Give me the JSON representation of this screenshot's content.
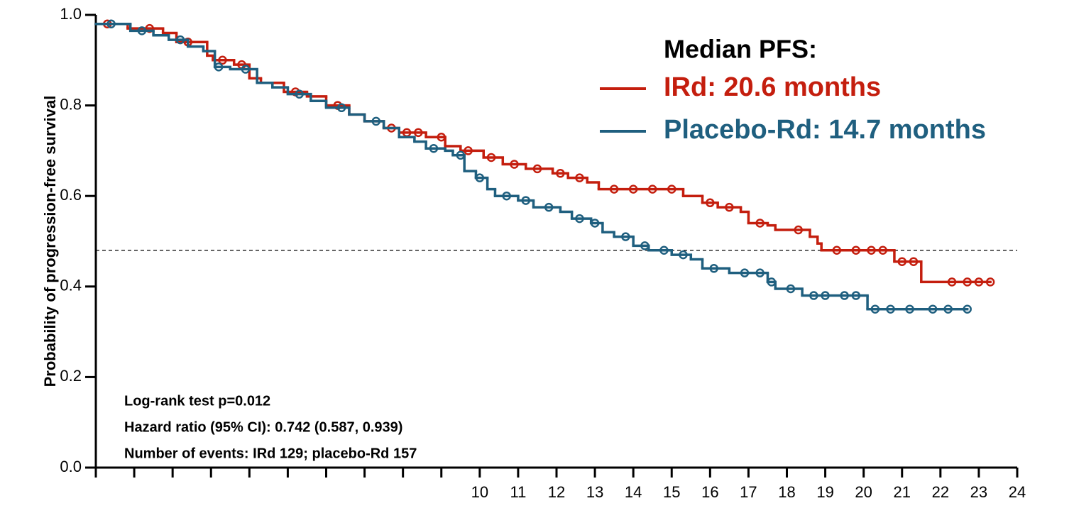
{
  "chart_data": {
    "type": "line",
    "step": "post",
    "y_label": "Probability of progression-free survival",
    "legend_title": "Median PFS:",
    "annotations": [
      "Log-rank test p=0.012",
      "Hazard ratio (95% CI): 0.742 (0.587, 0.939)",
      "Number of events: IRd 129; placebo-Rd 157"
    ],
    "reference_line": 0.48,
    "xlim": [
      0,
      24
    ],
    "ylim": [
      0,
      1
    ],
    "xticks": [
      {
        "value": 0,
        "label": null
      },
      {
        "value": 1,
        "label": null
      },
      {
        "value": 2,
        "label": null
      },
      {
        "value": 3,
        "label": null
      },
      {
        "value": 4,
        "label": null
      },
      {
        "value": 5,
        "label": null
      },
      {
        "value": 6,
        "label": null
      },
      {
        "value": 7,
        "label": null
      },
      {
        "value": 8,
        "label": null
      },
      {
        "value": 9,
        "label": null
      },
      10,
      11,
      12,
      13,
      14,
      15,
      16,
      17,
      18,
      19,
      20,
      21,
      22,
      23,
      24
    ],
    "yticks": [
      {
        "value": 0,
        "label": "0.0"
      },
      0.2,
      0.4,
      0.6,
      0.8,
      {
        "value": 1,
        "label": "1.0"
      }
    ],
    "series": [
      {
        "name": "IRd: 20.6 months",
        "color": "#c41e0e",
        "end_x": 23.3,
        "x": [
          0,
          0.83,
          1.75,
          2.1,
          2.9,
          3.05,
          3.6,
          4.0,
          4.3,
          4.9,
          5.5,
          6.0,
          6.6,
          7.0,
          7.5,
          7.9,
          8.6,
          9.1,
          9.5,
          10.1,
          10.6,
          11.2,
          11.9,
          12.3,
          12.8,
          13.1,
          15.3,
          15.8,
          16.2,
          16.8,
          17.0,
          17.5,
          17.7,
          18.6,
          18.8,
          18.9,
          20.8,
          21.5
        ],
        "values": [
          0.98,
          0.97,
          0.96,
          0.94,
          0.91,
          0.9,
          0.89,
          0.86,
          0.85,
          0.83,
          0.82,
          0.8,
          0.78,
          0.765,
          0.75,
          0.74,
          0.73,
          0.71,
          0.7,
          0.685,
          0.67,
          0.66,
          0.65,
          0.64,
          0.63,
          0.615,
          0.6,
          0.585,
          0.575,
          0.565,
          0.54,
          0.535,
          0.525,
          0.51,
          0.495,
          0.48,
          0.455,
          0.41
        ],
        "censored": [
          0.3,
          1.4,
          2.4,
          3.3,
          3.8,
          5.2,
          6.3,
          7.7,
          8.1,
          8.4,
          9.0,
          9.7,
          10.3,
          10.9,
          11.5,
          12.1,
          12.6,
          13.5,
          14.0,
          14.5,
          15.0,
          16.0,
          16.5,
          17.3,
          18.3,
          19.3,
          19.8,
          20.2,
          20.5,
          21.0,
          21.3,
          22.3,
          22.7,
          23.0,
          23.3
        ]
      },
      {
        "name": "Placebo-Rd: 14.7 months",
        "color": "#1f5f7f",
        "end_x": 22.7,
        "x": [
          0,
          0.9,
          1.5,
          1.9,
          2.4,
          2.8,
          3.1,
          3.5,
          4.2,
          4.6,
          5.0,
          5.6,
          6.0,
          6.6,
          7.0,
          7.5,
          7.9,
          8.3,
          8.6,
          9.1,
          9.3,
          9.6,
          9.9,
          10.2,
          10.4,
          11.0,
          11.4,
          12.1,
          12.4,
          12.9,
          13.2,
          13.5,
          14.0,
          14.4,
          15.0,
          15.5,
          15.8,
          16.5,
          17.5,
          17.7,
          18.4,
          20.1
        ],
        "values": [
          0.98,
          0.965,
          0.955,
          0.945,
          0.93,
          0.92,
          0.885,
          0.88,
          0.85,
          0.84,
          0.825,
          0.81,
          0.795,
          0.78,
          0.765,
          0.75,
          0.73,
          0.72,
          0.705,
          0.7,
          0.69,
          0.655,
          0.64,
          0.615,
          0.6,
          0.59,
          0.575,
          0.565,
          0.55,
          0.54,
          0.52,
          0.51,
          0.49,
          0.48,
          0.47,
          0.46,
          0.44,
          0.43,
          0.41,
          0.395,
          0.38,
          0.35
        ],
        "censored": [
          0.4,
          1.2,
          2.2,
          3.2,
          3.9,
          5.3,
          6.4,
          7.3,
          8.8,
          9.5,
          10.0,
          10.7,
          11.2,
          11.8,
          12.6,
          13.0,
          13.8,
          14.3,
          14.8,
          15.3,
          16.1,
          16.9,
          17.3,
          17.6,
          18.1,
          18.7,
          19.0,
          19.5,
          19.8,
          20.3,
          20.7,
          21.2,
          21.8,
          22.2,
          22.7
        ]
      }
    ]
  }
}
